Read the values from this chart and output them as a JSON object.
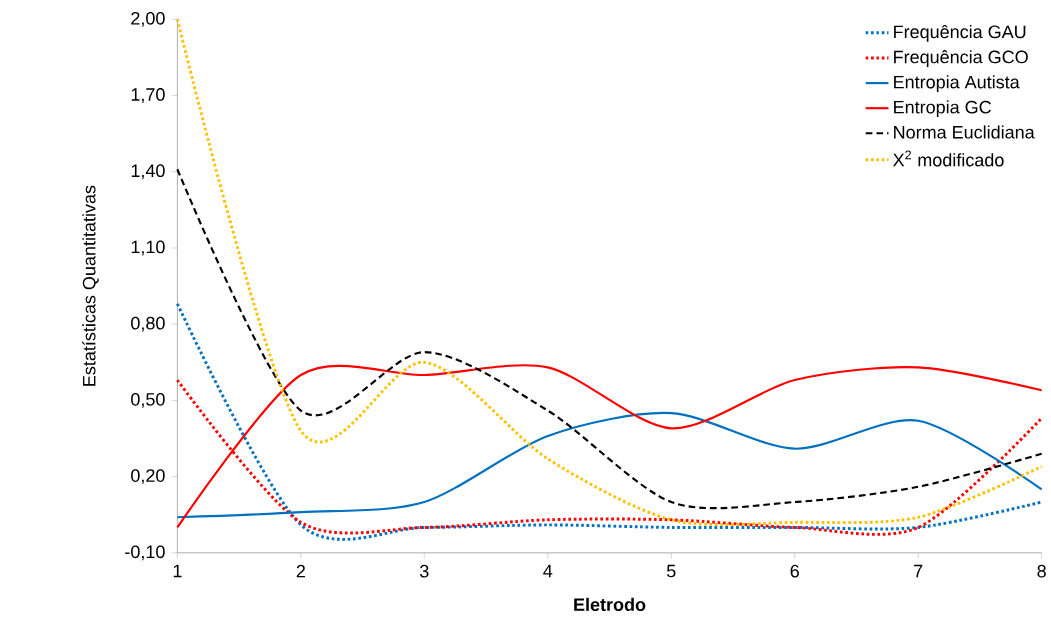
{
  "chart_data": {
    "type": "line",
    "xlabel": "**Eletrodo**",
    "ylabel": "Estatísticas Quantitativas",
    "x": [
      1,
      2,
      3,
      4,
      5,
      6,
      7,
      8
    ],
    "xlim": [
      1,
      8
    ],
    "xticks": [
      1,
      2,
      3,
      4,
      5,
      6,
      7,
      8
    ],
    "ylim": [
      -0.1,
      2.0
    ],
    "yticks": [
      {
        "value": -0.1,
        "label": "-0,10"
      },
      {
        "value": 0.2,
        "label": "0,20"
      },
      {
        "value": 0.5,
        "label": "0,50"
      },
      {
        "value": 0.8,
        "label": "0,80"
      },
      {
        "value": 1.1,
        "label": "1,10"
      },
      {
        "value": 1.4,
        "label": "1,40"
      },
      {
        "value": 1.7,
        "label": "1,70"
      },
      {
        "value": 2.0,
        "label": "2,00"
      }
    ],
    "legend": "top right",
    "series": [
      {
        "name": "Frequência GAU",
        "color": "#0070c0",
        "line_style": "dotted",
        "values": [
          0.88,
          0.01,
          0.0,
          0.01,
          0.0,
          0.0,
          0.0,
          0.1
        ]
      },
      {
        "name": "Frequência GCO",
        "color": "#ff0000",
        "line_style": "dotted",
        "values": [
          0.58,
          0.02,
          0.0,
          0.03,
          0.03,
          0.0,
          0.0,
          0.43
        ]
      },
      {
        "name": "Entropia Autista",
        "color": "#0070c0",
        "line_style": "solid",
        "values": [
          0.04,
          0.06,
          0.1,
          0.36,
          0.45,
          0.31,
          0.42,
          0.15
        ]
      },
      {
        "name": "Entropia GC",
        "color": "#ff0000",
        "line_style": "solid",
        "values": [
          0.0,
          0.6,
          0.6,
          0.63,
          0.39,
          0.58,
          0.63,
          0.54
        ]
      },
      {
        "name": "Norma Euclidiana",
        "color": "#000000",
        "line_style": "dashed",
        "values": [
          1.41,
          0.46,
          0.69,
          0.46,
          0.1,
          0.1,
          0.16,
          0.29
        ]
      },
      {
        "name": "X$^{2}$ modificado",
        "color": "#ffc000",
        "line_style": "dotted",
        "values": [
          2.0,
          0.38,
          0.65,
          0.27,
          0.03,
          0.02,
          0.04,
          0.24
        ]
      }
    ]
  }
}
